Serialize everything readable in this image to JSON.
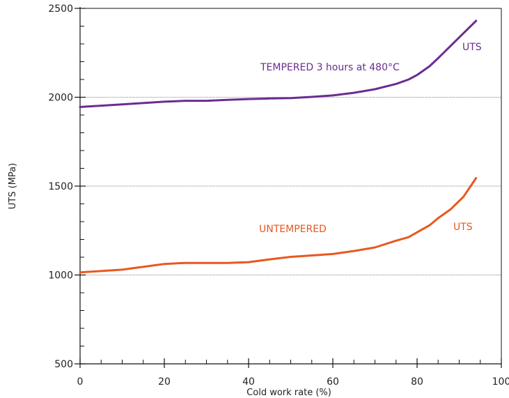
{
  "chart_data": {
    "type": "line",
    "xlabel": "Cold work rate (%)",
    "ylabel": "UTS (MPa)",
    "xlim": [
      0,
      100
    ],
    "ylim": [
      500,
      2500
    ],
    "x_ticks": [
      "0",
      "20",
      "40",
      "60",
      "80",
      "100"
    ],
    "y_ticks": [
      "500",
      "1000",
      "1500",
      "2000",
      "2500"
    ],
    "x_tick_values": [
      0,
      20,
      40,
      60,
      80,
      100
    ],
    "y_tick_values": [
      500,
      1000,
      1500,
      2000,
      2500
    ],
    "x_minor_step": 5,
    "y_minor_step": 100,
    "grid": "horizontal at 1000, 1500, 2000",
    "series": [
      {
        "name": "TEMPERED 3 hours at 480°C",
        "end_label": "UTS",
        "color": "#6a2c91",
        "x": [
          0,
          10,
          20,
          25,
          30,
          35,
          40,
          45,
          50,
          55,
          60,
          65,
          70,
          75,
          78,
          80,
          83,
          85,
          88,
          91,
          94
        ],
        "y": [
          1945,
          1960,
          1975,
          1980,
          1980,
          1985,
          1990,
          1993,
          1995,
          2002,
          2010,
          2025,
          2045,
          2075,
          2100,
          2125,
          2175,
          2220,
          2290,
          2360,
          2430
        ]
      },
      {
        "name": "UNTEMPERED",
        "end_label": "UTS",
        "color": "#e8581e",
        "x": [
          0,
          10,
          20,
          25,
          30,
          35,
          40,
          45,
          50,
          55,
          60,
          65,
          70,
          75,
          78,
          80,
          83,
          85,
          88,
          91,
          94
        ],
        "y": [
          1015,
          1030,
          1062,
          1068,
          1068,
          1068,
          1072,
          1088,
          1102,
          1110,
          1118,
          1135,
          1155,
          1193,
          1213,
          1240,
          1280,
          1320,
          1370,
          1440,
          1545
        ]
      }
    ]
  }
}
